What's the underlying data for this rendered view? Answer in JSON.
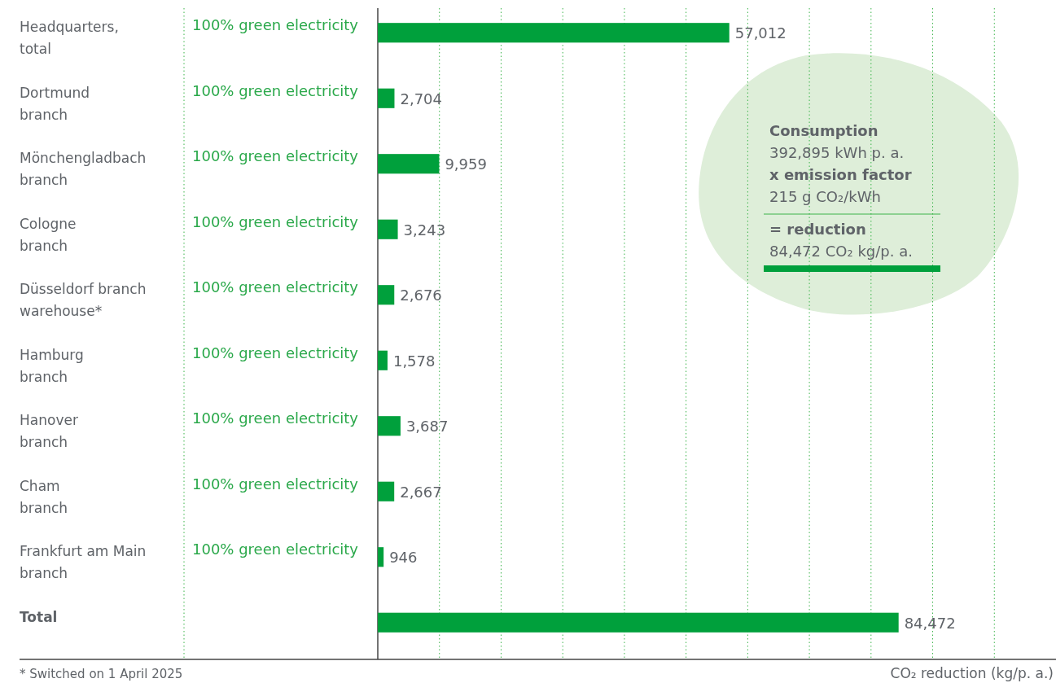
{
  "chart_data": {
    "type": "bar",
    "orientation": "horizontal",
    "color": "#00a03c",
    "value_labels": [
      "57,012",
      "2,704",
      "9,959",
      "3,243",
      "2,676",
      "1,578",
      "3,687",
      "2,667",
      "946",
      "84,472"
    ],
    "grid": "x",
    "tick_labels": "y",
    "categories": [
      "Headquarters, total",
      "Dortmund branch",
      "Mönchengladbach branch",
      "Cologne branch",
      "Düsseldorf branch warehouse*",
      "Hamburg branch",
      "Hanover branch",
      "Cham branch",
      "Frankfurt am Main branch",
      "Total"
    ],
    "values": [
      57012,
      2704,
      9959,
      3243,
      2676,
      1578,
      3687,
      2667,
      946,
      84472
    ],
    "xlim": [
      0,
      110000
    ],
    "xticks": [
      {
        "value": 10000,
        "label": null
      },
      {
        "value": 20000,
        "label": null
      },
      {
        "value": 30000,
        "label": null
      },
      {
        "value": 40000,
        "label": null
      },
      {
        "value": 50000,
        "label": null
      },
      {
        "value": 60000,
        "label": null
      },
      {
        "value": 70000,
        "label": null
      },
      {
        "value": 80000,
        "label": null
      },
      {
        "value": 90000,
        "label": null
      },
      {
        "value": 100000,
        "label": null
      }
    ],
    "xlabel": "CO₂ reduction (kg/p. a.)",
    "annotations": [
      "100% green electricity",
      "100% green electricity",
      "100% green electricity",
      "100% green electricity",
      "100% green electricity",
      "100% green electricity",
      "100% green electricity",
      "100% green electricity",
      "100% green electricity",
      "Consumption",
      "392,895 kWh p. a.",
      "x emission factor",
      "215 g CO₂/kWh",
      "= reduction",
      "84,472 CO₂ kg/p. a.",
      "* Switched on 1 April 2025"
    ]
  }
}
